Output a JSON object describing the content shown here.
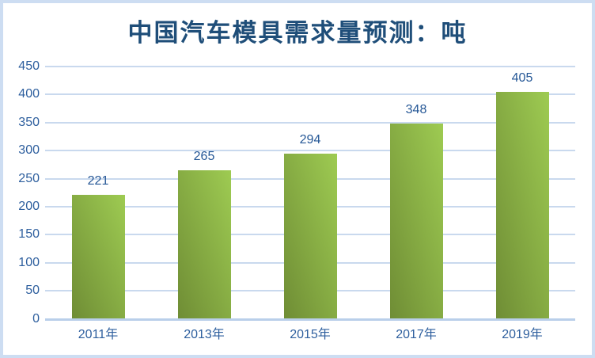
{
  "chart_data": {
    "type": "bar",
    "title": "中国汽车模具需求量预测：吨",
    "categories": [
      "2011年",
      "2013年",
      "2015年",
      "2017年",
      "2019年"
    ],
    "values": [
      221,
      265,
      294,
      348,
      405
    ],
    "xlabel": "",
    "ylabel": "",
    "ylim": [
      0,
      450
    ],
    "ytick_step": 50,
    "grid": true,
    "legend_position": "none",
    "colors": {
      "title": "#1f4e79",
      "axis_label": "#2e5f9e",
      "data_label": "#255796",
      "gridline": "#c9d9ee",
      "zero_axis": "#b9cfea",
      "frame_border": "#cdddf2",
      "bar_gradient_light": "#9ecb52",
      "bar_gradient_dark": "#6f8d35",
      "background": "#ffffff"
    }
  }
}
